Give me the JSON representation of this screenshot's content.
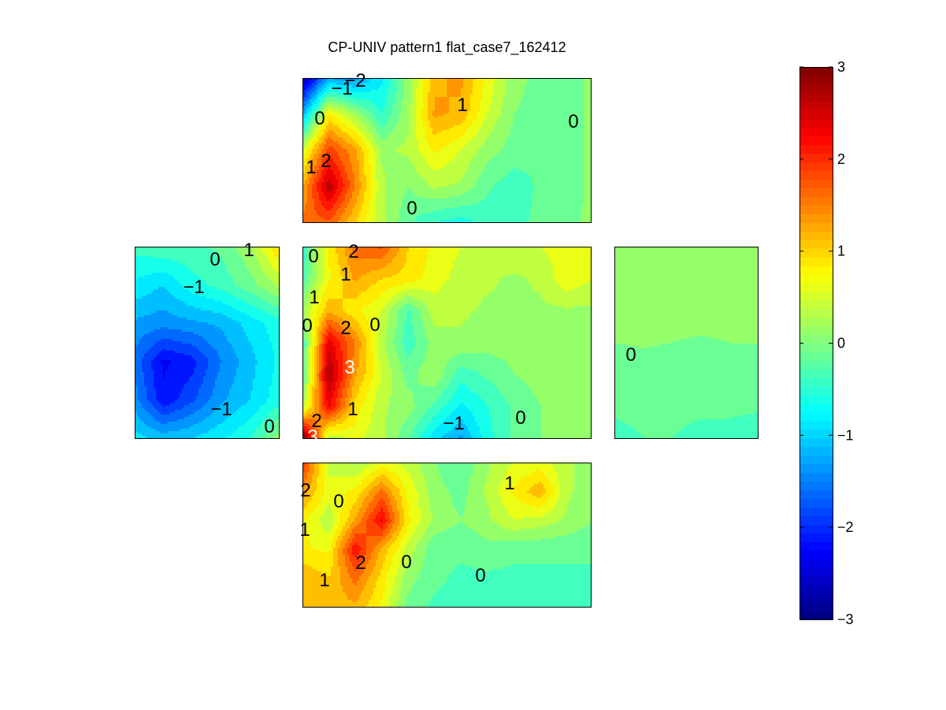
{
  "chart_data": {
    "type": "heatmap",
    "subtype": "filled-contour, unfolded cube surfaces",
    "title": "CP-UNIV pattern1 flat_case7_162412",
    "colormap": "jet",
    "clim": [
      -3,
      3
    ],
    "colorbar": {
      "location": "right",
      "ticks": [
        -3,
        -2,
        -1,
        0,
        1,
        2,
        3
      ],
      "tick_labels": [
        "−3",
        "−2",
        "−1",
        "0",
        "1",
        "2",
        "3"
      ]
    },
    "grid": false,
    "panels": [
      {
        "name": "top",
        "contour_labels": [
          "−1",
          "−2",
          "0",
          "1",
          "2",
          "1",
          "0",
          "0"
        ],
        "field": [
          [
            -2.8,
            -1.3,
            -1.4,
            -0.8,
            0.1,
            1.2,
            1.3,
            0.7,
            0.1,
            -0.1,
            -0.2,
            0.1
          ],
          [
            -1.2,
            0.8,
            0.2,
            -0.5,
            0.2,
            1.3,
            1.2,
            0.5,
            0.0,
            -0.1,
            -0.2,
            0.1
          ],
          [
            0.5,
            1.9,
            1.3,
            0.2,
            0.3,
            0.8,
            0.5,
            0.1,
            -0.1,
            -0.2,
            -0.2,
            0.1
          ],
          [
            1.2,
            2.7,
            1.5,
            0.3,
            0.0,
            0.3,
            0.2,
            -0.2,
            -0.4,
            -0.2,
            -0.2,
            0.1
          ],
          [
            1.6,
            1.7,
            1.0,
            0.3,
            -0.2,
            -0.5,
            -0.6,
            -0.4,
            -0.3,
            -0.2,
            -0.1,
            0.1
          ]
        ]
      },
      {
        "name": "left",
        "contour_labels": [
          "0",
          "1",
          "−1",
          "−1",
          "0"
        ],
        "field": [
          [
            -0.4,
            -0.3,
            -0.3,
            -0.2,
            0.2,
            1.0
          ],
          [
            -0.8,
            -1.0,
            -0.6,
            -0.4,
            -0.1,
            0.3
          ],
          [
            -1.3,
            -1.4,
            -1.3,
            -1.2,
            -0.9,
            -0.6
          ],
          [
            -1.6,
            -2.3,
            -2.1,
            -1.5,
            -1.1,
            -0.7
          ],
          [
            -1.4,
            -2.2,
            -1.8,
            -1.3,
            -1.0,
            -0.6
          ],
          [
            -0.9,
            -1.1,
            -1.0,
            -0.8,
            -0.5,
            0.1
          ]
        ]
      },
      {
        "name": "center",
        "contour_labels": [
          "0",
          "2",
          "1",
          "1",
          "0",
          "2",
          "0",
          "3",
          "1",
          "2",
          "−1",
          "0",
          "3"
        ],
        "field": [
          [
            -0.5,
            0.8,
            1.6,
            1.8,
            1.0,
            0.7,
            0.5,
            0.5,
            0.5,
            0.5,
            0.6,
            0.7
          ],
          [
            -0.3,
            0.7,
            1.3,
            1.0,
            0.9,
            0.6,
            0.4,
            0.3,
            0.2,
            0.3,
            0.7,
            0.5
          ],
          [
            0.2,
            1.2,
            0.8,
            0.5,
            -0.3,
            0.4,
            0.3,
            0.2,
            0.2,
            0.2,
            0.2,
            0.2
          ],
          [
            -0.4,
            2.4,
            1.5,
            0.3,
            -0.4,
            0.1,
            0.2,
            0.1,
            0.1,
            0.2,
            0.1,
            0.1
          ],
          [
            -0.3,
            2.8,
            1.3,
            0.5,
            -0.1,
            0.2,
            -0.4,
            -0.2,
            0.0,
            0.1,
            0.1,
            0.1
          ],
          [
            0.3,
            2.3,
            0.9,
            0.3,
            0.1,
            -0.3,
            -0.8,
            -0.5,
            -0.2,
            0.0,
            0.1,
            0.1
          ],
          [
            3.2,
            0.3,
            0.6,
            0.3,
            -0.2,
            -0.9,
            -1.3,
            -0.6,
            -0.2,
            0.0,
            0.1,
            0.1
          ]
        ]
      },
      {
        "name": "right",
        "contour_labels": [
          "0"
        ],
        "field": [
          [
            0.1,
            0.1,
            0.1,
            0.1,
            0.1,
            0.1
          ],
          [
            0.1,
            0.1,
            0.1,
            0.1,
            0.1,
            0.1
          ],
          [
            0.1,
            0.1,
            0.1,
            0.1,
            0.1,
            0.1
          ],
          [
            -0.1,
            -0.05,
            -0.1,
            -0.2,
            -0.1,
            -0.1
          ],
          [
            -0.2,
            -0.2,
            -0.2,
            -0.2,
            -0.2,
            -0.2
          ],
          [
            -0.3,
            -0.25,
            -0.25,
            -0.3,
            -0.3,
            -0.35
          ]
        ]
      },
      {
        "name": "bottom",
        "contour_labels": [
          "2",
          "0",
          "1",
          "1",
          "2",
          "0",
          "0",
          "1"
        ],
        "field": [
          [
            2.0,
            0.4,
            0.2,
            0.6,
            0.4,
            0.0,
            -0.2,
            0.2,
            0.5,
            0.6,
            0.3,
            0.1
          ],
          [
            1.4,
            0.6,
            0.8,
            1.6,
            0.7,
            0.1,
            -0.1,
            0.3,
            0.8,
            1.2,
            0.3,
            0.1
          ],
          [
            0.8,
            0.3,
            1.3,
            2.3,
            0.8,
            0.2,
            0.0,
            0.2,
            0.5,
            0.4,
            0.2,
            0.0
          ],
          [
            0.8,
            0.7,
            2.2,
            1.2,
            0.4,
            -0.2,
            -0.2,
            -0.1,
            -0.2,
            -0.2,
            -0.2,
            -0.2
          ],
          [
            1.2,
            1.0,
            1.6,
            0.9,
            0.1,
            -0.2,
            -0.3,
            -0.3,
            -0.3,
            -0.3,
            -0.3,
            -0.3
          ],
          [
            1.0,
            1.1,
            1.2,
            0.7,
            -0.1,
            -0.3,
            -0.3,
            -0.3,
            -0.3,
            -0.3,
            -0.3,
            -0.3
          ]
        ]
      }
    ]
  }
}
